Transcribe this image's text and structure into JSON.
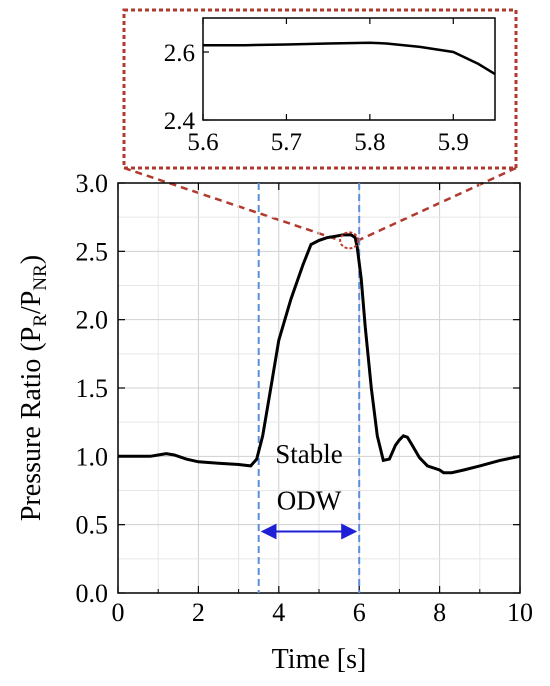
{
  "chart_data": [
    {
      "type": "line",
      "title": "",
      "xlabel": "Time [s]",
      "ylabel": {
        "main": "Pressure Ratio (P",
        "sub1": "R",
        "mid": "/P",
        "sub2": "NR",
        "end": ")"
      },
      "xlim": [
        0,
        10
      ],
      "ylim": [
        0.0,
        3.0
      ],
      "xticks": [
        "0",
        "2",
        "4",
        "6",
        "8",
        "10"
      ],
      "yticks": [
        "0.0",
        "0.5",
        "1.0",
        "1.5",
        "2.0",
        "2.5",
        "3.0"
      ],
      "grid": true,
      "series": [
        {
          "color": "#000000",
          "x": [
            0,
            0.5,
            0.8,
            1.0,
            1.2,
            1.4,
            1.7,
            2.0,
            2.5,
            3.0,
            3.3,
            3.45,
            3.6,
            3.8,
            4.0,
            4.3,
            4.6,
            4.8,
            5.0,
            5.2,
            5.4,
            5.6,
            5.8,
            5.9,
            5.95,
            6.05,
            6.15,
            6.3,
            6.45,
            6.6,
            6.75,
            6.9,
            7.0,
            7.1,
            7.2,
            7.3,
            7.5,
            7.7,
            8.0,
            8.1,
            8.3,
            8.6,
            9.0,
            9.5,
            10.0
          ],
          "y": [
            1.0,
            1.0,
            1.0,
            1.01,
            1.02,
            1.01,
            0.98,
            0.96,
            0.95,
            0.94,
            0.93,
            0.98,
            1.15,
            1.5,
            1.85,
            2.15,
            2.4,
            2.55,
            2.58,
            2.6,
            2.61,
            2.62,
            2.62,
            2.6,
            2.53,
            2.3,
            1.95,
            1.5,
            1.15,
            0.97,
            0.98,
            1.08,
            1.12,
            1.15,
            1.14,
            1.09,
            0.99,
            0.93,
            0.9,
            0.88,
            0.88,
            0.9,
            0.93,
            0.97,
            1.0
          ]
        }
      ],
      "vlines": [
        3.5,
        6.0
      ],
      "vline_color": "#5b8fd9",
      "annotations": {
        "stable_line1": "Stable",
        "stable_line2": "ODW",
        "arrow_from": 3.5,
        "arrow_to": 6.0,
        "arrow_y": 0.45,
        "arrow_color": "#1f1fd6",
        "text_y1": 0.95,
        "text_y2": 0.61,
        "text_x": 4.75
      },
      "zoom_marker": {
        "center_x": 5.75,
        "center_y": 2.58,
        "color": "#c0392b"
      }
    },
    {
      "type": "line",
      "xlim": [
        5.6,
        5.95
      ],
      "ylim": [
        2.4,
        2.7
      ],
      "xticks": [
        "5.6",
        "5.7",
        "5.8",
        "5.9"
      ],
      "yticks": [
        "2.4",
        "2.6"
      ],
      "grid": false,
      "series": [
        {
          "color": "#000000",
          "x": [
            5.6,
            5.65,
            5.7,
            5.75,
            5.8,
            5.82,
            5.86,
            5.9,
            5.93,
            5.95
          ],
          "y": [
            2.62,
            2.62,
            2.622,
            2.625,
            2.627,
            2.625,
            2.615,
            2.6,
            2.565,
            2.535
          ]
        }
      ],
      "border_color": "#b03a2e"
    }
  ]
}
